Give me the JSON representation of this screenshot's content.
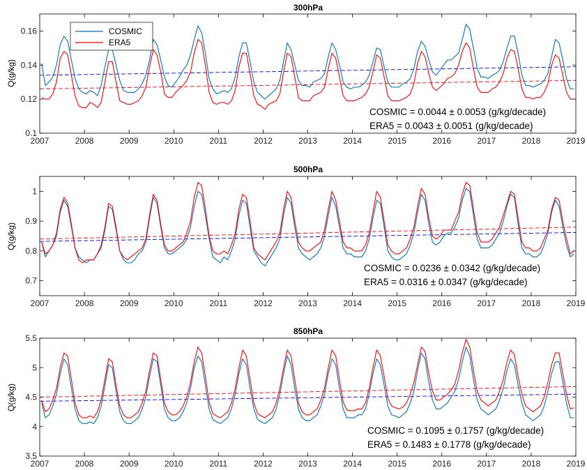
{
  "colors": {
    "cosmic": "#0072BD",
    "era5": "#FF0000",
    "trend_cosmic": "#0000FF",
    "trend_era5": "#FF0000",
    "axes": "#000000",
    "background": "#FFFFFF"
  },
  "legend": {
    "entries": [
      "COSMIC",
      "ERA5"
    ],
    "placement": "top-left"
  },
  "chart_data": [
    {
      "type": "line",
      "title": "300hPa",
      "xlabel": "",
      "ylabel": "Q(g/kg)",
      "xlim": [
        2007,
        2019
      ],
      "ylim": [
        0.1,
        0.17
      ],
      "xticks": [
        2007,
        2008,
        2009,
        2010,
        2011,
        2012,
        2013,
        2014,
        2015,
        2016,
        2017,
        2018,
        2019
      ],
      "yticks": [
        0.1,
        0.12,
        0.14,
        0.16
      ],
      "ytick_labels": [
        "0.1",
        "0.12",
        "0.14",
        "0.16"
      ],
      "grid": false,
      "legend": "top-left",
      "series": [
        {
          "name": "COSMIC",
          "line": "solid",
          "trend": [
            0.134,
            0.139
          ],
          "annual_means": [
            0.138,
            0.137,
            0.137,
            0.141,
            0.137,
            0.136,
            0.135,
            0.136,
            0.137,
            0.142,
            0.139,
            0.136
          ],
          "values": [
            0.141,
            0.128,
            0.13,
            0.133,
            0.14,
            0.152,
            0.157,
            0.154,
            0.143,
            0.132,
            0.126,
            0.124,
            0.123,
            0.125,
            0.124,
            0.122,
            0.128,
            0.139,
            0.149,
            0.149,
            0.14,
            0.131,
            0.125,
            0.124,
            0.124,
            0.124,
            0.126,
            0.129,
            0.134,
            0.143,
            0.155,
            0.152,
            0.143,
            0.133,
            0.128,
            0.127,
            0.13,
            0.133,
            0.137,
            0.14,
            0.146,
            0.155,
            0.163,
            0.159,
            0.147,
            0.132,
            0.126,
            0.123,
            0.124,
            0.125,
            0.124,
            0.126,
            0.133,
            0.145,
            0.153,
            0.153,
            0.142,
            0.13,
            0.124,
            0.122,
            0.12,
            0.122,
            0.124,
            0.126,
            0.131,
            0.142,
            0.153,
            0.149,
            0.14,
            0.131,
            0.128,
            0.128,
            0.127,
            0.13,
            0.131,
            0.132,
            0.135,
            0.145,
            0.153,
            0.149,
            0.14,
            0.13,
            0.127,
            0.126,
            0.127,
            0.127,
            0.128,
            0.13,
            0.134,
            0.142,
            0.15,
            0.149,
            0.139,
            0.13,
            0.127,
            0.127,
            0.127,
            0.129,
            0.13,
            0.132,
            0.138,
            0.148,
            0.154,
            0.151,
            0.143,
            0.136,
            0.134,
            0.137,
            0.14,
            0.143,
            0.143,
            0.145,
            0.147,
            0.155,
            0.164,
            0.161,
            0.15,
            0.138,
            0.133,
            0.133,
            0.132,
            0.134,
            0.135,
            0.137,
            0.142,
            0.15,
            0.157,
            0.157,
            0.147,
            0.134,
            0.128,
            0.128,
            0.127,
            0.128,
            0.129,
            0.131,
            0.135,
            0.145,
            0.155,
            0.153,
            0.143,
            0.132,
            0.126,
            0.126
          ]
        },
        {
          "name": "ERA5",
          "line": "solid",
          "trend": [
            0.126,
            0.131
          ],
          "annual_means": [
            0.129,
            0.126,
            0.127,
            0.131,
            0.128,
            0.125,
            0.126,
            0.127,
            0.127,
            0.131,
            0.129,
            0.127
          ],
          "values": [
            0.121,
            0.12,
            0.12,
            0.123,
            0.13,
            0.144,
            0.148,
            0.146,
            0.134,
            0.122,
            0.116,
            0.115,
            0.115,
            0.118,
            0.117,
            0.115,
            0.118,
            0.13,
            0.142,
            0.142,
            0.13,
            0.119,
            0.118,
            0.117,
            0.117,
            0.118,
            0.119,
            0.122,
            0.127,
            0.139,
            0.149,
            0.146,
            0.136,
            0.123,
            0.121,
            0.121,
            0.124,
            0.126,
            0.128,
            0.131,
            0.136,
            0.147,
            0.155,
            0.153,
            0.14,
            0.124,
            0.118,
            0.117,
            0.118,
            0.118,
            0.117,
            0.119,
            0.125,
            0.139,
            0.147,
            0.147,
            0.135,
            0.122,
            0.117,
            0.116,
            0.114,
            0.117,
            0.118,
            0.119,
            0.123,
            0.136,
            0.147,
            0.145,
            0.133,
            0.121,
            0.119,
            0.119,
            0.119,
            0.122,
            0.123,
            0.124,
            0.127,
            0.138,
            0.147,
            0.144,
            0.133,
            0.122,
            0.119,
            0.119,
            0.119,
            0.12,
            0.121,
            0.123,
            0.127,
            0.136,
            0.146,
            0.144,
            0.133,
            0.122,
            0.119,
            0.119,
            0.119,
            0.12,
            0.121,
            0.123,
            0.129,
            0.141,
            0.148,
            0.145,
            0.135,
            0.127,
            0.125,
            0.127,
            0.129,
            0.132,
            0.133,
            0.135,
            0.14,
            0.148,
            0.153,
            0.15,
            0.138,
            0.127,
            0.124,
            0.124,
            0.124,
            0.126,
            0.127,
            0.13,
            0.135,
            0.144,
            0.149,
            0.148,
            0.138,
            0.126,
            0.121,
            0.121,
            0.12,
            0.121,
            0.121,
            0.124,
            0.129,
            0.14,
            0.146,
            0.144,
            0.134,
            0.124,
            0.12,
            0.12
          ]
        }
      ],
      "annotations": [
        "COSMIC = 0.0044 ± 0.0053 (g/kg/decade)",
        "ERA5 = 0.0043 ± 0.0051 (g/kg/decade)"
      ]
    },
    {
      "type": "line",
      "title": "500hPa",
      "xlabel": "",
      "ylabel": "Q(g/kg)",
      "xlim": [
        2007,
        2019
      ],
      "ylim": [
        0.65,
        1.05
      ],
      "xticks": [
        2007,
        2008,
        2009,
        2010,
        2011,
        2012,
        2013,
        2014,
        2015,
        2016,
        2017,
        2018,
        2019
      ],
      "yticks": [
        0.7,
        0.8,
        0.9,
        1.0
      ],
      "ytick_labels": [
        "0.7",
        "0.8",
        "0.9",
        "1"
      ],
      "grid": false,
      "series": [
        {
          "name": "COSMIC",
          "line": "solid",
          "trend": [
            0.832,
            0.862
          ],
          "values": [
            0.83,
            0.78,
            0.8,
            0.82,
            0.85,
            0.93,
            0.97,
            0.95,
            0.88,
            0.81,
            0.78,
            0.77,
            0.76,
            0.77,
            0.77,
            0.79,
            0.81,
            0.87,
            0.95,
            0.94,
            0.87,
            0.8,
            0.77,
            0.76,
            0.76,
            0.77,
            0.79,
            0.8,
            0.83,
            0.91,
            0.98,
            0.96,
            0.88,
            0.81,
            0.79,
            0.79,
            0.8,
            0.81,
            0.82,
            0.84,
            0.88,
            0.95,
            1.0,
            0.99,
            0.92,
            0.84,
            0.78,
            0.77,
            0.76,
            0.78,
            0.77,
            0.8,
            0.84,
            0.92,
            0.97,
            0.96,
            0.88,
            0.8,
            0.78,
            0.76,
            0.75,
            0.77,
            0.79,
            0.81,
            0.84,
            0.92,
            0.98,
            0.96,
            0.88,
            0.81,
            0.79,
            0.78,
            0.77,
            0.78,
            0.79,
            0.81,
            0.85,
            0.92,
            0.98,
            0.95,
            0.88,
            0.81,
            0.79,
            0.79,
            0.78,
            0.78,
            0.78,
            0.8,
            0.84,
            0.91,
            0.97,
            0.96,
            0.88,
            0.8,
            0.78,
            0.77,
            0.77,
            0.78,
            0.79,
            0.82,
            0.86,
            0.93,
            0.99,
            0.97,
            0.89,
            0.83,
            0.82,
            0.83,
            0.85,
            0.86,
            0.86,
            0.88,
            0.91,
            0.97,
            1.01,
            1.0,
            0.92,
            0.84,
            0.81,
            0.81,
            0.81,
            0.82,
            0.84,
            0.86,
            0.9,
            0.95,
            0.99,
            0.98,
            0.89,
            0.81,
            0.79,
            0.79,
            0.78,
            0.78,
            0.79,
            0.82,
            0.86,
            0.93,
            0.97,
            0.95,
            0.88,
            0.82,
            0.78,
            0.79
          ]
        },
        {
          "name": "ERA5",
          "line": "solid",
          "trend": [
            0.84,
            0.88
          ],
          "values": [
            0.83,
            0.79,
            0.8,
            0.82,
            0.86,
            0.94,
            0.98,
            0.96,
            0.89,
            0.81,
            0.77,
            0.76,
            0.77,
            0.77,
            0.77,
            0.79,
            0.82,
            0.88,
            0.96,
            0.95,
            0.88,
            0.8,
            0.78,
            0.77,
            0.78,
            0.79,
            0.8,
            0.81,
            0.84,
            0.92,
            0.99,
            0.97,
            0.89,
            0.82,
            0.8,
            0.8,
            0.81,
            0.82,
            0.83,
            0.86,
            0.9,
            0.98,
            1.03,
            1.02,
            0.94,
            0.85,
            0.8,
            0.79,
            0.79,
            0.8,
            0.79,
            0.82,
            0.86,
            0.94,
            0.99,
            0.98,
            0.9,
            0.81,
            0.79,
            0.78,
            0.77,
            0.79,
            0.81,
            0.83,
            0.86,
            0.94,
            1.0,
            0.98,
            0.9,
            0.83,
            0.81,
            0.8,
            0.8,
            0.81,
            0.82,
            0.83,
            0.87,
            0.94,
            1.0,
            0.97,
            0.9,
            0.83,
            0.81,
            0.81,
            0.8,
            0.8,
            0.8,
            0.82,
            0.86,
            0.93,
            1.0,
            0.98,
            0.9,
            0.82,
            0.8,
            0.79,
            0.79,
            0.8,
            0.81,
            0.84,
            0.88,
            0.95,
            1.01,
            0.99,
            0.91,
            0.85,
            0.84,
            0.85,
            0.87,
            0.87,
            0.87,
            0.9,
            0.93,
            0.99,
            1.03,
            1.02,
            0.94,
            0.86,
            0.83,
            0.83,
            0.83,
            0.84,
            0.86,
            0.88,
            0.92,
            0.96,
            1.0,
            0.99,
            0.91,
            0.83,
            0.81,
            0.81,
            0.8,
            0.8,
            0.81,
            0.84,
            0.87,
            0.94,
            0.98,
            0.97,
            0.9,
            0.84,
            0.79,
            0.8
          ]
        }
      ],
      "annotations": [
        "COSMIC = 0.0236 ± 0.0342 (g/kg/decade)",
        "ERA5 = 0.0316 ± 0.0347 (g/kg/decade)"
      ]
    },
    {
      "type": "line",
      "title": "850hPa",
      "xlabel": "",
      "ylabel": "Q(g/kg)",
      "xlim": [
        2007,
        2019
      ],
      "ylim": [
        3.5,
        5.5
      ],
      "xticks": [
        2007,
        2008,
        2009,
        2010,
        2011,
        2012,
        2013,
        2014,
        2015,
        2016,
        2017,
        2018,
        2019
      ],
      "yticks": [
        3.5,
        4.0,
        4.5,
        5.0,
        5.5
      ],
      "ytick_labels": [
        "3.5",
        "4",
        "4.5",
        "5",
        "5.5"
      ],
      "grid": false,
      "series": [
        {
          "name": "COSMIC",
          "line": "solid",
          "trend": [
            4.43,
            4.55
          ],
          "values": [
            4.4,
            4.15,
            4.2,
            4.35,
            4.55,
            4.9,
            5.15,
            5.05,
            4.65,
            4.3,
            4.1,
            4.05,
            4.05,
            4.08,
            4.05,
            4.15,
            4.35,
            4.7,
            5.05,
            5.0,
            4.6,
            4.25,
            4.1,
            4.05,
            4.05,
            4.1,
            4.15,
            4.3,
            4.5,
            4.85,
            5.15,
            5.1,
            4.7,
            4.3,
            4.15,
            4.1,
            4.1,
            4.15,
            4.25,
            4.4,
            4.65,
            5.0,
            5.2,
            5.1,
            4.7,
            4.3,
            4.12,
            4.08,
            4.05,
            4.1,
            4.15,
            4.3,
            4.55,
            4.9,
            5.15,
            5.05,
            4.65,
            4.3,
            4.12,
            4.08,
            4.05,
            4.1,
            4.15,
            4.3,
            4.55,
            4.9,
            5.2,
            5.05,
            4.65,
            4.3,
            4.15,
            4.1,
            4.1,
            4.15,
            4.2,
            4.35,
            4.55,
            4.9,
            5.15,
            5.05,
            4.65,
            4.3,
            4.15,
            4.15,
            4.15,
            4.2,
            4.2,
            4.3,
            4.55,
            4.9,
            5.15,
            5.05,
            4.7,
            4.35,
            4.2,
            4.18,
            4.15,
            4.2,
            4.25,
            4.4,
            4.6,
            4.95,
            5.25,
            5.15,
            4.75,
            4.45,
            4.3,
            4.3,
            4.35,
            4.4,
            4.5,
            4.6,
            4.8,
            5.1,
            5.35,
            5.2,
            4.8,
            4.45,
            4.3,
            4.25,
            4.2,
            4.25,
            4.3,
            4.45,
            4.65,
            4.95,
            5.15,
            5.05,
            4.7,
            4.4,
            4.2,
            4.15,
            4.1,
            4.15,
            4.2,
            4.35,
            4.6,
            4.9,
            5.1,
            5.1,
            4.75,
            4.4,
            4.15,
            4.15
          ]
        },
        {
          "name": "ERA5",
          "line": "solid",
          "trend": [
            4.5,
            4.68
          ],
          "values": [
            4.45,
            4.25,
            4.3,
            4.45,
            4.65,
            5.0,
            5.25,
            5.2,
            4.8,
            4.4,
            4.2,
            4.15,
            4.15,
            4.18,
            4.15,
            4.25,
            4.45,
            4.8,
            5.15,
            5.1,
            4.7,
            4.35,
            4.2,
            4.15,
            4.15,
            4.2,
            4.25,
            4.4,
            4.6,
            4.95,
            5.25,
            5.2,
            4.8,
            4.4,
            4.25,
            4.2,
            4.2,
            4.25,
            4.35,
            4.5,
            4.75,
            5.1,
            5.35,
            5.25,
            4.85,
            4.42,
            4.22,
            4.18,
            4.15,
            4.2,
            4.25,
            4.4,
            4.65,
            5.0,
            5.3,
            5.2,
            4.8,
            4.4,
            4.22,
            4.18,
            4.15,
            4.2,
            4.25,
            4.4,
            4.65,
            5.0,
            5.3,
            5.2,
            4.8,
            4.4,
            4.25,
            4.2,
            4.2,
            4.25,
            4.3,
            4.45,
            4.65,
            5.0,
            5.3,
            5.2,
            4.8,
            4.42,
            4.28,
            4.27,
            4.27,
            4.3,
            4.3,
            4.4,
            4.65,
            5.0,
            5.3,
            5.2,
            4.85,
            4.48,
            4.35,
            4.32,
            4.3,
            4.33,
            4.4,
            4.55,
            4.75,
            5.05,
            5.35,
            5.28,
            4.9,
            4.6,
            4.45,
            4.45,
            4.5,
            4.55,
            4.62,
            4.72,
            4.95,
            5.25,
            5.48,
            5.35,
            4.95,
            4.6,
            4.45,
            4.4,
            4.35,
            4.4,
            4.45,
            4.6,
            4.8,
            5.1,
            5.3,
            5.22,
            4.85,
            4.55,
            4.35,
            4.3,
            4.25,
            4.3,
            4.35,
            4.5,
            4.75,
            5.05,
            5.25,
            5.25,
            4.9,
            4.55,
            4.3,
            4.32
          ]
        }
      ],
      "annotations": [
        "COSMIC = 0.1095 ± 0.1757 (g/kg/decade)",
        "ERA5 = 0.1483 ± 0.1778 (g/kg/decade)"
      ]
    }
  ]
}
